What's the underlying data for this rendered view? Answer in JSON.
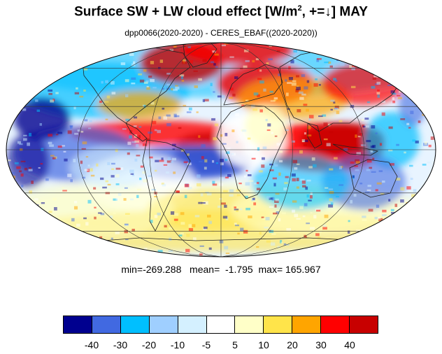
{
  "title": {
    "main": "Surface SW + LW cloud effect [W/m",
    "sup": "2",
    "rest": ", +=↓]  MAY"
  },
  "subtitle": "dpp0066(2020-2020) - CERES_EBAF((2020-2020))",
  "stats": "min=-269.288   mean=  -1.795  max= 165.967",
  "colorbar": {
    "colors": [
      "#00008f",
      "#4169e1",
      "#00bfff",
      "#9fcfff",
      "#d4f0ff",
      "#ffffff",
      "#ffffc8",
      "#ffe44a",
      "#ffa500",
      "#ff0000",
      "#c80000"
    ],
    "labels": [
      "-40",
      "-30",
      "-20",
      "-10",
      "-5",
      "5",
      "10",
      "20",
      "30",
      "40"
    ]
  },
  "map": {
    "projection": "mollweide",
    "grid": true,
    "field_description": "cloud radiative effect anomaly pattern"
  }
}
